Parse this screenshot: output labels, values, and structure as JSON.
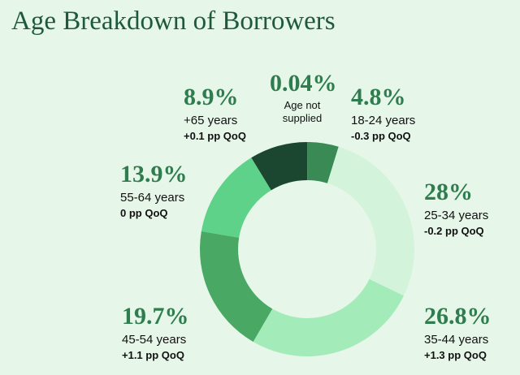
{
  "chart_data": {
    "type": "pie",
    "donut": true,
    "title": "Age Breakdown of Borrowers",
    "categories": [
      "Age not supplied",
      "18-24 years",
      "25-34 years",
      "35-44 years",
      "45-54 years",
      "55-64 years",
      "+65 years"
    ],
    "values": [
      0.04,
      4.8,
      28,
      26.8,
      19.7,
      13.9,
      8.9
    ],
    "value_labels": [
      "0.04%",
      "4.8%",
      "28%",
      "26.8%",
      "19.7%",
      "13.9%",
      "8.9%"
    ],
    "changes": [
      null,
      "-0.3 pp QoQ",
      "-0.2 pp QoQ",
      "+1.3 pp QoQ",
      "+1.1 pp QoQ",
      "0 pp QoQ",
      "+0.1 pp QoQ"
    ],
    "colors": [
      "#1f4d35",
      "#3a8a56",
      "#d3f4da",
      "#a3ebb8",
      "#4aa865",
      "#5fd28a",
      "#1b4731"
    ]
  }
}
